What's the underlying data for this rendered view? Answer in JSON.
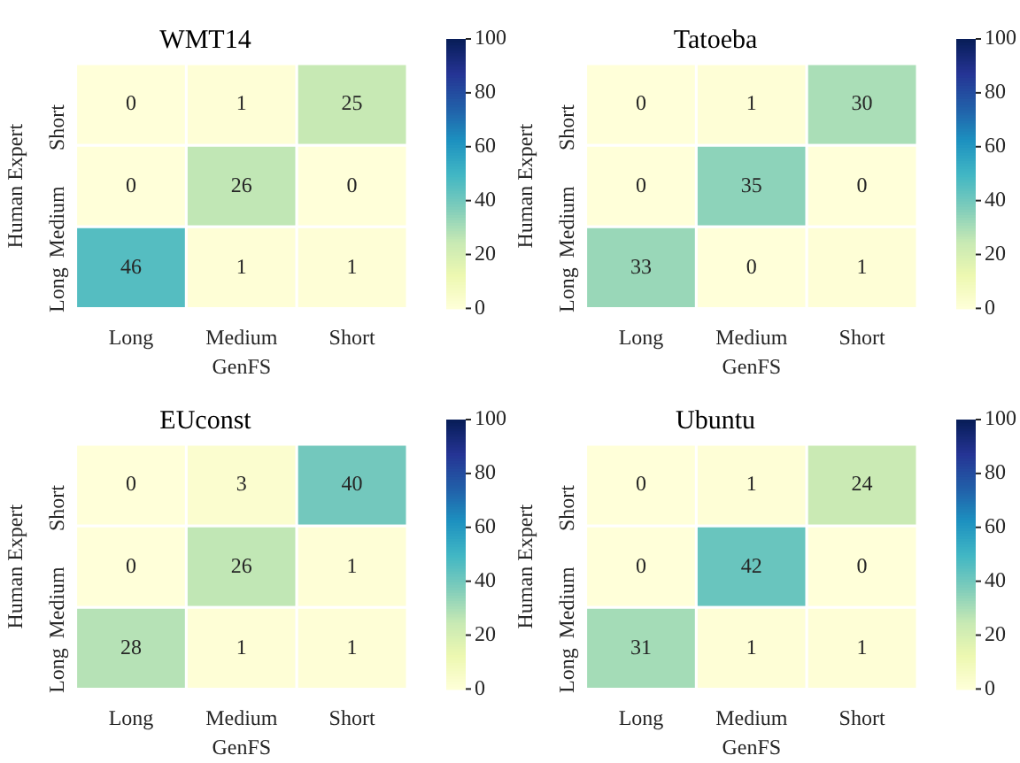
{
  "chart_data": [
    {
      "type": "heatmap",
      "data_labels": true,
      "title": "WMT14",
      "xlabel": "GenFS",
      "ylabel": "Human Expert",
      "categories": [
        "Long",
        "Medium",
        "Short"
      ],
      "y_categories": [
        "Short",
        "Medium",
        "Long"
      ],
      "cells": [
        [
          0,
          1,
          25
        ],
        [
          0,
          26,
          0
        ],
        [
          46,
          1,
          1
        ]
      ],
      "clim": [
        0,
        100
      ],
      "cticks": [
        0,
        20,
        40,
        60,
        80,
        100
      ]
    },
    {
      "type": "heatmap",
      "data_labels": true,
      "title": "Tatoeba",
      "xlabel": "GenFS",
      "ylabel": "Human Expert",
      "categories": [
        "Long",
        "Medium",
        "Short"
      ],
      "y_categories": [
        "Short",
        "Medium",
        "Long"
      ],
      "cells": [
        [
          0,
          1,
          30
        ],
        [
          0,
          35,
          0
        ],
        [
          33,
          0,
          1
        ]
      ],
      "clim": [
        0,
        100
      ],
      "cticks": [
        0,
        20,
        40,
        60,
        80,
        100
      ]
    },
    {
      "type": "heatmap",
      "data_labels": true,
      "title": "EUconst",
      "xlabel": "GenFS",
      "ylabel": "Human Expert",
      "categories": [
        "Long",
        "Medium",
        "Short"
      ],
      "y_categories": [
        "Short",
        "Medium",
        "Long"
      ],
      "cells": [
        [
          0,
          3,
          40
        ],
        [
          0,
          26,
          1
        ],
        [
          28,
          1,
          1
        ]
      ],
      "clim": [
        0,
        100
      ],
      "cticks": [
        0,
        20,
        40,
        60,
        80,
        100
      ]
    },
    {
      "type": "heatmap",
      "data_labels": true,
      "title": "Ubuntu",
      "xlabel": "GenFS",
      "ylabel": "Human Expert",
      "categories": [
        "Long",
        "Medium",
        "Short"
      ],
      "y_categories": [
        "Short",
        "Medium",
        "Long"
      ],
      "cells": [
        [
          0,
          1,
          24
        ],
        [
          0,
          42,
          0
        ],
        [
          31,
          1,
          1
        ]
      ],
      "clim": [
        0,
        100
      ],
      "cticks": [
        0,
        20,
        40,
        60,
        80,
        100
      ]
    }
  ]
}
